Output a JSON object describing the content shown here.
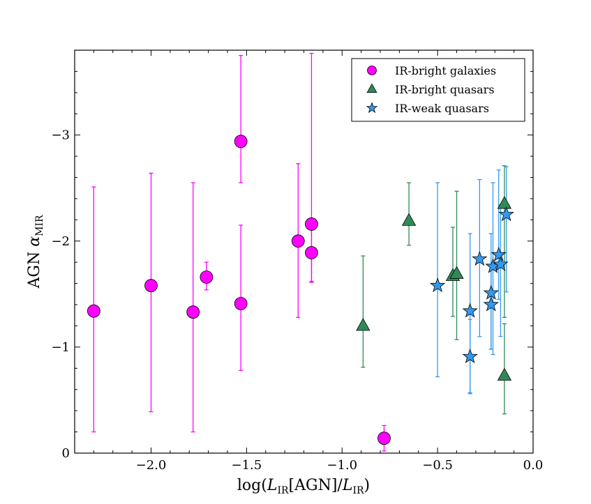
{
  "chart_data": {
    "type": "scatter",
    "xlabel": "log(L_IR[AGN]/L_IR)",
    "ylabel": "AGN α_MIR",
    "xlim": [
      -2.4,
      0.0
    ],
    "ylim": [
      0,
      -3.8
    ],
    "y_inverted": true,
    "grid": false,
    "legend_position": "top-right",
    "x_ticks": [
      -2.0,
      -1.5,
      -1.0,
      -0.5,
      0.0
    ],
    "x_tick_labels": [
      "−2.0",
      "−1.5",
      "−1.0",
      "−0.5",
      "0.0"
    ],
    "y_ticks": [
      0,
      -1,
      -2,
      -3
    ],
    "y_tick_labels": [
      "0",
      "−1",
      "−2",
      "−3"
    ],
    "series": [
      {
        "name": "IR-bright galaxies",
        "marker": "circle",
        "color": "#ff00ff",
        "points": [
          {
            "x": -2.3,
            "y": -1.34,
            "err_lo": -0.2,
            "err_hi": -2.51
          },
          {
            "x": -2.0,
            "y": -1.58,
            "err_lo": -0.39,
            "err_hi": -2.64
          },
          {
            "x": -1.78,
            "y": -1.33,
            "err_lo": -0.2,
            "err_hi": -2.55
          },
          {
            "x": -1.71,
            "y": -1.66,
            "err_lo": -1.54,
            "err_hi": -1.8
          },
          {
            "x": -1.53,
            "y": -2.94,
            "err_lo": -2.55,
            "err_hi": -3.75
          },
          {
            "x": -1.53,
            "y": -1.41,
            "err_lo": -0.78,
            "err_hi": -2.15
          },
          {
            "x": -1.23,
            "y": -2.0,
            "err_lo": -1.28,
            "err_hi": -2.73
          },
          {
            "x": -1.16,
            "y": -2.16,
            "err_lo": -1.62,
            "err_hi": -3.77
          },
          {
            "x": -1.16,
            "y": -1.89,
            "err_lo": -1.61,
            "err_hi": -2.16
          },
          {
            "x": -0.78,
            "y": -0.14,
            "err_lo": -0.02,
            "err_hi": -0.26
          }
        ]
      },
      {
        "name": "IR-bright quasars",
        "marker": "triangle",
        "color": "#2e8b57",
        "points": [
          {
            "x": -0.89,
            "y": -1.2,
            "err_lo": -0.81,
            "err_hi": -1.86
          },
          {
            "x": -0.65,
            "y": -2.19,
            "err_lo": -1.96,
            "err_hi": -2.55
          },
          {
            "x": -0.42,
            "y": -1.67,
            "err_lo": -1.29,
            "err_hi": -2.13
          },
          {
            "x": -0.4,
            "y": -1.69,
            "err_lo": -1.07,
            "err_hi": -2.47
          },
          {
            "x": -0.15,
            "y": -2.35,
            "err_lo": -1.28,
            "err_hi": -2.71
          },
          {
            "x": -0.15,
            "y": -0.73,
            "err_lo": -0.37,
            "err_hi": -1.22
          }
        ]
      },
      {
        "name": "IR-weak quasars",
        "marker": "star",
        "color": "#3399ee",
        "points": [
          {
            "x": -0.5,
            "y": -1.58,
            "err_lo": -0.72,
            "err_hi": -2.55
          },
          {
            "x": -0.33,
            "y": -1.34,
            "err_lo": -0.57,
            "err_hi": -2.07
          },
          {
            "x": -0.33,
            "y": -0.91,
            "err_lo": -0.56,
            "err_hi": -1.26
          },
          {
            "x": -0.28,
            "y": -1.83,
            "err_lo": -1.1,
            "err_hi": -2.58
          },
          {
            "x": -0.22,
            "y": -1.51,
            "err_lo": -0.98,
            "err_hi": -2.07
          },
          {
            "x": -0.22,
            "y": -1.4,
            "err_lo": -0.98,
            "err_hi": -1.78
          },
          {
            "x": -0.21,
            "y": -1.76,
            "err_lo": -0.93,
            "err_hi": -2.55
          },
          {
            "x": -0.18,
            "y": -1.87,
            "err_lo": -1.45,
            "err_hi": -2.67
          },
          {
            "x": -0.17,
            "y": -1.78,
            "err_lo": -1.1,
            "err_hi": -2.34
          },
          {
            "x": -0.14,
            "y": -2.25,
            "err_lo": -1.52,
            "err_hi": -2.7
          }
        ]
      }
    ]
  }
}
